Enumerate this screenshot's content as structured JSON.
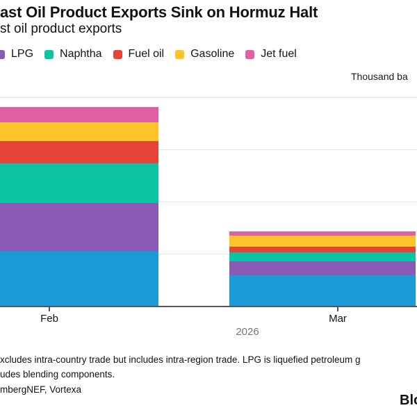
{
  "header": {
    "title": "ast Oil Product Exports Sink on Hormuz Halt",
    "subtitle": "st oil product exports"
  },
  "legend": {
    "items": [
      {
        "label": "LPG",
        "color": "#8b5ab5"
      },
      {
        "label": "Naphtha",
        "color": "#0cc3a4"
      },
      {
        "label": "Fuel oil",
        "color": "#e54437"
      },
      {
        "label": "Gasoline",
        "color": "#fcc32b"
      },
      {
        "label": "Jet fuel",
        "color": "#e25fa4"
      }
    ]
  },
  "chart_data": {
    "type": "bar",
    "stacked": true,
    "unit_label": "Thousand ba",
    "categories": [
      "Feb",
      "Mar"
    ],
    "period_label": "2026",
    "series": [
      {
        "name": "",
        "color": "#1b9ad6",
        "values": [
          525,
          295
        ]
      },
      {
        "name": "LPG",
        "color": "#8b5ab5",
        "values": [
          465,
          130
        ]
      },
      {
        "name": "Naphtha",
        "color": "#0cc3a4",
        "values": [
          375,
          90
        ]
      },
      {
        "name": "Fuel oil",
        "color": "#e54437",
        "values": [
          215,
          55
        ]
      },
      {
        "name": "Gasoline",
        "color": "#fcc32b",
        "values": [
          180,
          105
        ]
      },
      {
        "name": "Jet fuel",
        "color": "#e25fa4",
        "values": [
          150,
          40
        ]
      }
    ],
    "ylim": [
      0,
      2000
    ],
    "grid_values": [
      500,
      1000,
      1500,
      2000
    ],
    "y_tick_labels_visible": false,
    "legend_position": "top-left"
  },
  "footnotes": {
    "line1": "xcludes intra-country trade but includes intra-region trade. LPG is liquefied petroleum g",
    "line2": "udes blending components.",
    "line3": "mbergNEF, Vortexa"
  },
  "branding": {
    "logo_fragment": "Blo"
  },
  "colors": {
    "axis": "#55565a",
    "grid": "#e4e4e4",
    "year_label": "#767676"
  }
}
